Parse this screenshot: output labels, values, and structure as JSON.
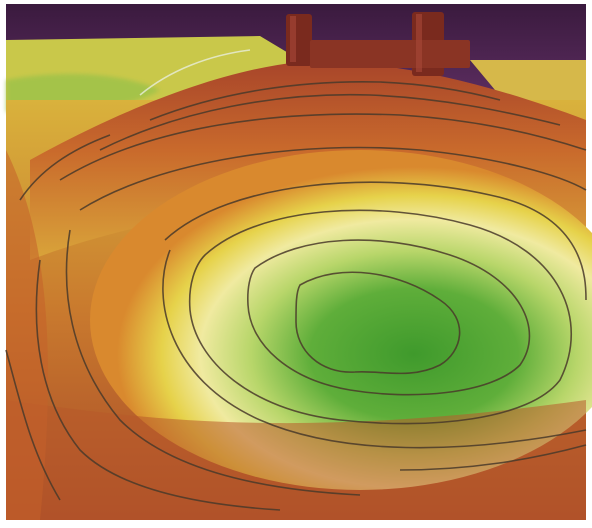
{
  "image": {
    "subject": "ar-sandbox-topographic-relief",
    "palette": {
      "wall": "#5a2c5e",
      "wall_dark": "#3a1a3e",
      "low_red": "#b0442a",
      "mid_orange": "#d9892e",
      "yellow": "#e6d24a",
      "pale_yellow": "#f0eaa0",
      "light_green": "#b8d66a",
      "green": "#5fae3a",
      "deep_green": "#3f9a2c",
      "contour_line": "#4a3a2a",
      "block_wood": "#7a2a1e"
    },
    "objects": [
      {
        "name": "contour-lines",
        "count_visible": 14
      },
      {
        "name": "wooden-blocks",
        "count_visible": 3
      }
    ]
  }
}
